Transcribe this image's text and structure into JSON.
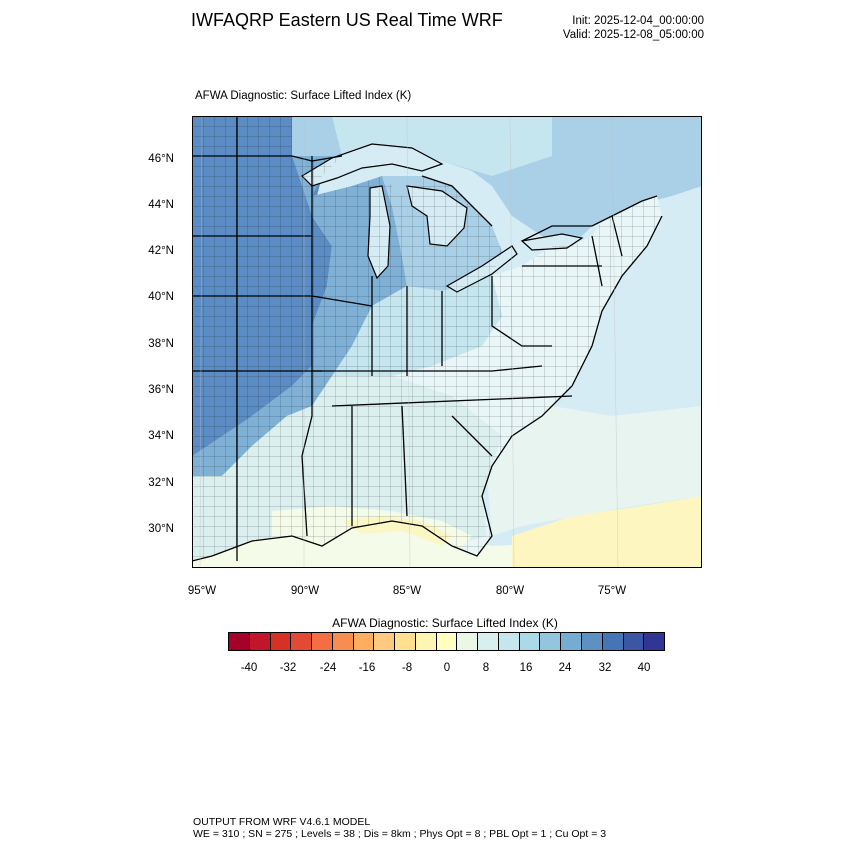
{
  "header": {
    "title": "IWFAQRP Eastern US Real Time WRF",
    "init": "Init: 2025-12-04_00:00:00",
    "valid": "Valid: 2025-12-08_05:00:00"
  },
  "panel": {
    "title": "AFWA Diagnostic: Surface Lifted Index   (K)"
  },
  "map": {
    "lat_labels": [
      "46°N",
      "44°N",
      "42°N",
      "40°N",
      "38°N",
      "36°N",
      "34°N",
      "32°N",
      "30°N"
    ],
    "lon_labels": [
      "95°W",
      "90°W",
      "85°W",
      "80°W",
      "75°W"
    ],
    "colors": {
      "water_light": "#d6ecf5",
      "plains_dark": "#5b8dc4",
      "midwest_mid": "#7fb0d6",
      "lakes_region": "#a9d0e6",
      "east_light": "#e8f6f8",
      "south_pale": "#f4fbe9",
      "gulf_yellow": "#fbf7c4",
      "ocean_yellow": "#fdf6c0"
    }
  },
  "colorbar": {
    "title": "AFWA Diagnostic: Surface Lifted Index  (K)",
    "colors": [
      "#a50026",
      "#c3152a",
      "#d73027",
      "#e34a33",
      "#f46d43",
      "#f88d52",
      "#fdae61",
      "#fec980",
      "#fee090",
      "#fef5b3",
      "#ffffbf",
      "#eaf7e4",
      "#d8eff0",
      "#c5e6ef",
      "#abd9e9",
      "#93c6de",
      "#74add1",
      "#5e91c2",
      "#4575b4",
      "#3b56a4",
      "#313695"
    ],
    "ticks": [
      "-40",
      "-32",
      "-24",
      "-16",
      "-8",
      "0",
      "8",
      "16",
      "24",
      "32",
      "40"
    ]
  },
  "footer": {
    "line1": "OUTPUT FROM WRF V4.6.1 MODEL",
    "line2": "WE = 310 ; SN = 275 ; Levels = 38 ; Dis = 8km ; Phys Opt = 8 ; PBL Opt = 1 ; Cu Opt = 3"
  }
}
